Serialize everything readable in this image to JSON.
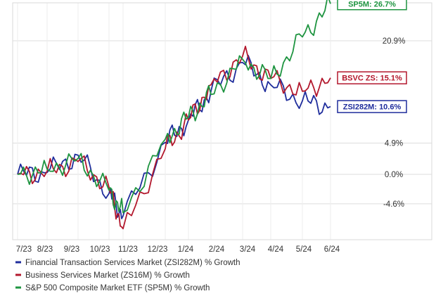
{
  "chart_data": {
    "type": "line",
    "title": "",
    "xlabel": "",
    "ylabel": "",
    "x_ticks": [
      "7/23",
      "8/23",
      "9/23",
      "10/23",
      "11/23",
      "12/23",
      "1/24",
      "2/24",
      "3/24",
      "4/24",
      "5/24",
      "6/24"
    ],
    "y_ticks": [
      "20.9%",
      "4.9%",
      "0.0%",
      "-4.6%"
    ],
    "y_tick_values": [
      20.9,
      4.9,
      0.0,
      -4.6
    ],
    "ylim": [
      -10.5,
      28.5
    ],
    "grid": true,
    "legend_position": "bottom",
    "series": [
      {
        "name": "Financial Transaction Services Market (ZSI282M) % Growth",
        "color": "#1f2d9c",
        "end_label": "ZSI282M: 10.6%",
        "points": [
          [
            "7/23",
            0.0
          ],
          [
            "8/23",
            0.3
          ],
          [
            "9/23",
            3.0
          ],
          [
            "10/23",
            -3.0
          ],
          [
            "11/23",
            -6.5
          ],
          [
            "12/23",
            5.0
          ],
          [
            "1/24",
            8.5
          ],
          [
            "2/24",
            13.0
          ],
          [
            "3/24",
            17.5
          ],
          [
            "4/24",
            14.0
          ],
          [
            "5/24",
            11.5
          ],
          [
            "6/24",
            10.6
          ]
        ]
      },
      {
        "name": "Business Services Market (ZS16M) % Growth",
        "color": "#b3182d",
        "end_label": "BSVC ZS: 15.1%",
        "points": [
          [
            "7/23",
            0.0
          ],
          [
            "8/23",
            0.5
          ],
          [
            "9/23",
            2.0
          ],
          [
            "10/23",
            -2.0
          ],
          [
            "11/23",
            -8.5
          ],
          [
            "12/23",
            4.0
          ],
          [
            "1/24",
            8.5
          ],
          [
            "2/24",
            14.0
          ],
          [
            "3/24",
            18.5
          ],
          [
            "4/24",
            15.0
          ],
          [
            "5/24",
            13.0
          ],
          [
            "6/24",
            15.1
          ]
        ]
      },
      {
        "name": "S&P 500 Composite Market ETF (SP5M) % Growth",
        "color": "#1e9440",
        "end_label": "SP5M: 26.7%",
        "points": [
          [
            "7/23",
            0.0
          ],
          [
            "8/23",
            0.8
          ],
          [
            "9/23",
            2.5
          ],
          [
            "10/23",
            -2.5
          ],
          [
            "11/23",
            -6.0
          ],
          [
            "12/23",
            5.5
          ],
          [
            "1/24",
            9.0
          ],
          [
            "2/24",
            12.5
          ],
          [
            "3/24",
            18.0
          ],
          [
            "4/24",
            15.0
          ],
          [
            "5/24",
            21.5
          ],
          [
            "6/24",
            26.7
          ]
        ]
      }
    ]
  }
}
